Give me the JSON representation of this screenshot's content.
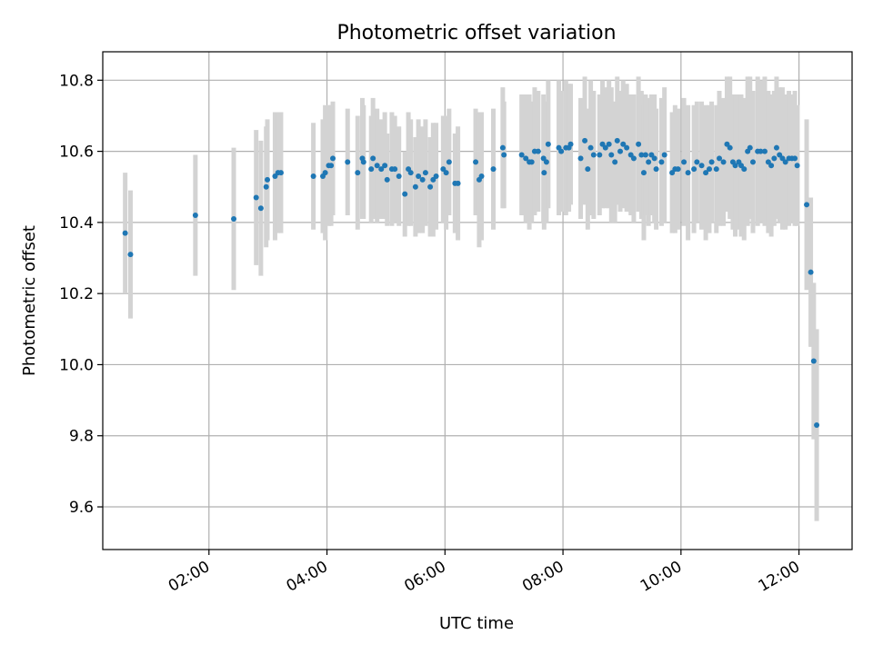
{
  "chart_data": {
    "type": "scatter",
    "title": "Photometric offset variation",
    "xlabel": "UTC time",
    "ylabel": "Photometric offset",
    "x_unit": "hours UTC",
    "xlim": [
      0.2,
      12.9
    ],
    "ylim": [
      9.48,
      10.88
    ],
    "grid": true,
    "x_ticks": [
      {
        "value": 2,
        "label": "02:00"
      },
      {
        "value": 4,
        "label": "04:00"
      },
      {
        "value": 6,
        "label": "06:00"
      },
      {
        "value": 8,
        "label": "08:00"
      },
      {
        "value": 10,
        "label": "10:00"
      },
      {
        "value": 12,
        "label": "12:00"
      }
    ],
    "y_ticks": [
      {
        "value": 9.6,
        "label": "9.6"
      },
      {
        "value": 9.8,
        "label": "9.8"
      },
      {
        "value": 10.0,
        "label": "10.0"
      },
      {
        "value": 10.2,
        "label": "10.2"
      },
      {
        "value": 10.4,
        "label": "10.4"
      },
      {
        "value": 10.6,
        "label": "10.6"
      },
      {
        "value": 10.8,
        "label": "10.8"
      }
    ],
    "colors": {
      "marker": "#1f77b4",
      "errorbar": "#d3d3d3",
      "grid": "#b0b0b0"
    },
    "series": [
      {
        "name": "Photometric offset",
        "points": [
          [
            0.58,
            10.37,
            0.17
          ],
          [
            0.67,
            10.31,
            0.18
          ],
          [
            1.77,
            10.42,
            0.17
          ],
          [
            2.42,
            10.41,
            0.2
          ],
          [
            2.8,
            10.47,
            0.19
          ],
          [
            2.88,
            10.44,
            0.19
          ],
          [
            2.97,
            10.5,
            0.17
          ],
          [
            2.99,
            10.52,
            0.17
          ],
          [
            3.12,
            10.53,
            0.18
          ],
          [
            3.17,
            10.54,
            0.17
          ],
          [
            3.22,
            10.54,
            0.17
          ],
          [
            3.77,
            10.53,
            0.15
          ],
          [
            3.93,
            10.53,
            0.16
          ],
          [
            3.97,
            10.54,
            0.19
          ],
          [
            4.03,
            10.56,
            0.17
          ],
          [
            4.07,
            10.56,
            0.17
          ],
          [
            4.1,
            10.58,
            0.16
          ],
          [
            4.35,
            10.57,
            0.15
          ],
          [
            4.52,
            10.54,
            0.16
          ],
          [
            4.6,
            10.58,
            0.17
          ],
          [
            4.62,
            10.57,
            0.16
          ],
          [
            4.75,
            10.55,
            0.15
          ],
          [
            4.78,
            10.58,
            0.17
          ],
          [
            4.85,
            10.56,
            0.16
          ],
          [
            4.92,
            10.55,
            0.14
          ],
          [
            4.98,
            10.56,
            0.15
          ],
          [
            5.02,
            10.52,
            0.13
          ],
          [
            5.1,
            10.55,
            0.16
          ],
          [
            5.15,
            10.55,
            0.15
          ],
          [
            5.22,
            10.53,
            0.14
          ],
          [
            5.32,
            10.48,
            0.12
          ],
          [
            5.38,
            10.55,
            0.16
          ],
          [
            5.42,
            10.54,
            0.15
          ],
          [
            5.5,
            10.5,
            0.14
          ],
          [
            5.55,
            10.53,
            0.16
          ],
          [
            5.62,
            10.52,
            0.15
          ],
          [
            5.67,
            10.54,
            0.15
          ],
          [
            5.75,
            10.5,
            0.14
          ],
          [
            5.8,
            10.52,
            0.16
          ],
          [
            5.85,
            10.53,
            0.15
          ],
          [
            5.97,
            10.55,
            0.15
          ],
          [
            6.02,
            10.54,
            0.16
          ],
          [
            6.07,
            10.57,
            0.15
          ],
          [
            6.17,
            10.51,
            0.14
          ],
          [
            6.22,
            10.51,
            0.16
          ],
          [
            6.52,
            10.57,
            0.15
          ],
          [
            6.58,
            10.52,
            0.19
          ],
          [
            6.62,
            10.53,
            0.18
          ],
          [
            6.82,
            10.55,
            0.17
          ],
          [
            6.98,
            10.61,
            0.17
          ],
          [
            7.0,
            10.59,
            0.15
          ],
          [
            7.3,
            10.59,
            0.17
          ],
          [
            7.37,
            10.58,
            0.18
          ],
          [
            7.43,
            10.57,
            0.19
          ],
          [
            7.47,
            10.57,
            0.17
          ],
          [
            7.52,
            10.6,
            0.18
          ],
          [
            7.58,
            10.6,
            0.17
          ],
          [
            7.67,
            10.58,
            0.18
          ],
          [
            7.72,
            10.57,
            0.17
          ],
          [
            7.68,
            10.54,
            0.16
          ],
          [
            7.75,
            10.62,
            0.18
          ],
          [
            7.93,
            10.61,
            0.19
          ],
          [
            7.97,
            10.6,
            0.17
          ],
          [
            8.05,
            10.61,
            0.19
          ],
          [
            8.1,
            10.61,
            0.18
          ],
          [
            8.13,
            10.62,
            0.17
          ],
          [
            8.3,
            10.58,
            0.17
          ],
          [
            8.37,
            10.63,
            0.18
          ],
          [
            8.42,
            10.55,
            0.17
          ],
          [
            8.47,
            10.61,
            0.19
          ],
          [
            8.52,
            10.59,
            0.18
          ],
          [
            8.62,
            10.59,
            0.17
          ],
          [
            8.67,
            10.62,
            0.18
          ],
          [
            8.72,
            10.61,
            0.17
          ],
          [
            8.78,
            10.62,
            0.18
          ],
          [
            8.82,
            10.59,
            0.19
          ],
          [
            8.88,
            10.57,
            0.17
          ],
          [
            8.92,
            10.63,
            0.18
          ],
          [
            8.97,
            10.6,
            0.17
          ],
          [
            9.02,
            10.62,
            0.18
          ],
          [
            9.08,
            10.61,
            0.18
          ],
          [
            9.15,
            10.59,
            0.17
          ],
          [
            9.2,
            10.58,
            0.18
          ],
          [
            9.28,
            10.62,
            0.19
          ],
          [
            9.33,
            10.59,
            0.18
          ],
          [
            9.37,
            10.54,
            0.19
          ],
          [
            9.4,
            10.59,
            0.17
          ],
          [
            9.45,
            10.57,
            0.18
          ],
          [
            9.5,
            10.59,
            0.17
          ],
          [
            9.55,
            10.58,
            0.18
          ],
          [
            9.58,
            10.55,
            0.17
          ],
          [
            9.67,
            10.57,
            0.18
          ],
          [
            9.72,
            10.59,
            0.19
          ],
          [
            9.85,
            10.54,
            0.17
          ],
          [
            9.9,
            10.55,
            0.18
          ],
          [
            9.95,
            10.55,
            0.17
          ],
          [
            10.05,
            10.57,
            0.18
          ],
          [
            10.12,
            10.54,
            0.19
          ],
          [
            10.22,
            10.55,
            0.18
          ],
          [
            10.27,
            10.57,
            0.17
          ],
          [
            10.35,
            10.56,
            0.18
          ],
          [
            10.42,
            10.54,
            0.19
          ],
          [
            10.48,
            10.55,
            0.18
          ],
          [
            10.52,
            10.57,
            0.17
          ],
          [
            10.6,
            10.55,
            0.18
          ],
          [
            10.65,
            10.58,
            0.19
          ],
          [
            10.72,
            10.57,
            0.18
          ],
          [
            10.78,
            10.62,
            0.19
          ],
          [
            10.83,
            10.61,
            0.2
          ],
          [
            10.88,
            10.57,
            0.19
          ],
          [
            10.92,
            10.56,
            0.2
          ],
          [
            10.98,
            10.57,
            0.19
          ],
          [
            11.02,
            10.56,
            0.2
          ],
          [
            11.07,
            10.55,
            0.2
          ],
          [
            11.13,
            10.6,
            0.21
          ],
          [
            11.17,
            10.61,
            0.2
          ],
          [
            11.22,
            10.57,
            0.2
          ],
          [
            11.3,
            10.6,
            0.21
          ],
          [
            11.35,
            10.6,
            0.2
          ],
          [
            11.42,
            10.6,
            0.21
          ],
          [
            11.48,
            10.57,
            0.2
          ],
          [
            11.53,
            10.56,
            0.2
          ],
          [
            11.58,
            10.58,
            0.19
          ],
          [
            11.62,
            10.61,
            0.2
          ],
          [
            11.67,
            10.59,
            0.19
          ],
          [
            11.72,
            10.58,
            0.2
          ],
          [
            11.77,
            10.57,
            0.19
          ],
          [
            11.83,
            10.58,
            0.19
          ],
          [
            11.88,
            10.58,
            0.18
          ],
          [
            11.93,
            10.58,
            0.19
          ],
          [
            11.97,
            10.56,
            0.17
          ],
          [
            12.13,
            10.45,
            0.24
          ],
          [
            12.2,
            10.26,
            0.21
          ],
          [
            12.25,
            10.01,
            0.22
          ],
          [
            12.3,
            9.83,
            0.27
          ]
        ]
      }
    ]
  }
}
